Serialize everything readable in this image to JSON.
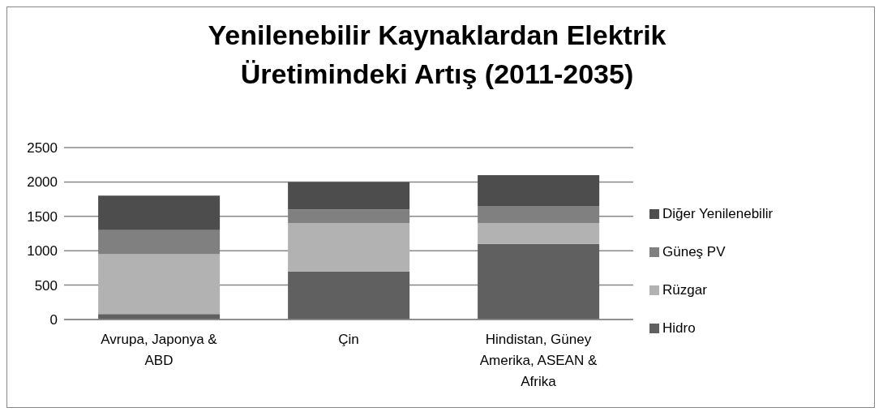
{
  "chart_data": {
    "type": "bar",
    "stacked": true,
    "title": "Yenilenebilir Kaynaklardan Elektrik Üretimindeki Artış (2011-2035)",
    "categories": [
      "Avrupa, Japonya & ABD",
      "Çin",
      "Hindistan, Güney Amerika, ASEAN & Afrika"
    ],
    "series": [
      {
        "name": "Hidro",
        "color": "#606060",
        "values": [
          80,
          700,
          1100
        ]
      },
      {
        "name": "Rüzgar",
        "color": "#b2b2b2",
        "values": [
          870,
          700,
          300
        ]
      },
      {
        "name": "Güneş PV",
        "color": "#808080",
        "values": [
          350,
          200,
          250
        ]
      },
      {
        "name": "Diğer Yenilenebilir",
        "color": "#4d4d4d",
        "values": [
          500,
          400,
          450
        ]
      }
    ],
    "ylim": [
      0,
      2500
    ],
    "yticks": [
      0,
      500,
      1000,
      1500,
      2000,
      2500
    ],
    "grid": "y",
    "legend": "right"
  }
}
